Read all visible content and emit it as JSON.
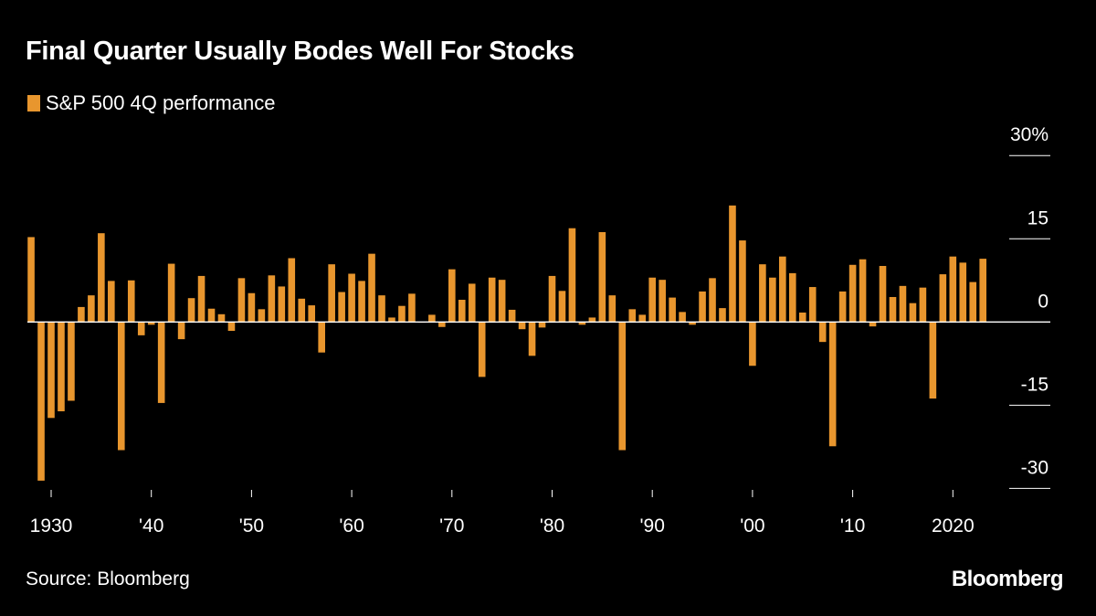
{
  "title": "Final Quarter Usually Bodes Well For Stocks",
  "source": "Source: Bloomberg",
  "logo": "Bloomberg",
  "colors": {
    "bar": "#E8962E",
    "background": "#000000",
    "text": "#FFFFFF"
  },
  "chart_data": {
    "type": "bar",
    "title": "Final Quarter Usually Bodes Well For Stocks",
    "legend": "top-left",
    "series": [
      {
        "name": "S&P 500 4Q performance",
        "color": "#E8962E",
        "x": [
          1928,
          1929,
          1930,
          1931,
          1932,
          1933,
          1934,
          1935,
          1936,
          1937,
          1938,
          1939,
          1940,
          1941,
          1942,
          1943,
          1944,
          1945,
          1946,
          1947,
          1948,
          1949,
          1950,
          1951,
          1952,
          1953,
          1954,
          1955,
          1956,
          1957,
          1958,
          1959,
          1960,
          1961,
          1962,
          1963,
          1964,
          1965,
          1966,
          1967,
          1968,
          1969,
          1970,
          1971,
          1972,
          1973,
          1974,
          1975,
          1976,
          1977,
          1978,
          1979,
          1980,
          1981,
          1982,
          1983,
          1984,
          1985,
          1986,
          1987,
          1988,
          1989,
          1990,
          1991,
          1992,
          1993,
          1994,
          1995,
          1996,
          1997,
          1998,
          1999,
          2000,
          2001,
          2002,
          2003,
          2004,
          2005,
          2006,
          2007,
          2008,
          2009,
          2010,
          2011,
          2012,
          2013,
          2014,
          2015,
          2016,
          2017,
          2018,
          2019,
          2020,
          2021,
          2022,
          2023
        ],
        "values": [
          15.3,
          -28.6,
          -17.3,
          -16.1,
          -14.2,
          2.7,
          4.8,
          16.0,
          7.4,
          -23.1,
          7.5,
          -2.4,
          -0.5,
          -14.6,
          10.5,
          -3.1,
          4.3,
          8.3,
          2.4,
          1.4,
          -1.6,
          7.9,
          5.2,
          2.3,
          8.4,
          6.4,
          11.5,
          4.2,
          3.0,
          -5.5,
          10.4,
          5.4,
          8.7,
          7.4,
          12.3,
          4.8,
          0.8,
          2.9,
          5.1,
          -0.1,
          1.3,
          -0.9,
          9.5,
          4.0,
          6.9,
          -9.9,
          8.0,
          7.6,
          2.2,
          -1.3,
          -6.1,
          -1.0,
          8.3,
          5.6,
          16.9,
          -0.5,
          0.8,
          16.2,
          4.8,
          -23.1,
          2.3,
          1.3,
          8.0,
          7.6,
          4.4,
          1.8,
          -0.5,
          5.5,
          7.9,
          2.5,
          21.0,
          14.7,
          -7.9,
          10.4,
          8.0,
          11.8,
          8.8,
          1.7,
          6.3,
          -3.6,
          -22.4,
          5.5,
          10.3,
          11.3,
          -0.8,
          10.1,
          4.5,
          6.5,
          3.4,
          6.2,
          -13.8,
          8.6,
          11.8,
          10.7,
          7.2,
          11.4
        ]
      }
    ],
    "x_ticks": [
      {
        "year": 1930,
        "label": "1930"
      },
      {
        "year": 1940,
        "label": "'40"
      },
      {
        "year": 1950,
        "label": "'50"
      },
      {
        "year": 1960,
        "label": "'60"
      },
      {
        "year": 1970,
        "label": "'70"
      },
      {
        "year": 1980,
        "label": "'80"
      },
      {
        "year": 1990,
        "label": "'90"
      },
      {
        "year": 2000,
        "label": "'00"
      },
      {
        "year": 2010,
        "label": "'10"
      },
      {
        "year": 2020,
        "label": "2020"
      }
    ],
    "y_ticks": [
      {
        "value": 30,
        "label": "30%"
      },
      {
        "value": 15,
        "label": "15"
      },
      {
        "value": 0,
        "label": "0"
      },
      {
        "value": -15,
        "label": "-15"
      },
      {
        "value": -30,
        "label": "-30"
      }
    ],
    "ylim": [
      -30,
      30
    ],
    "xlabel": "",
    "ylabel": "",
    "grid": false,
    "y_axis_side": "right"
  }
}
